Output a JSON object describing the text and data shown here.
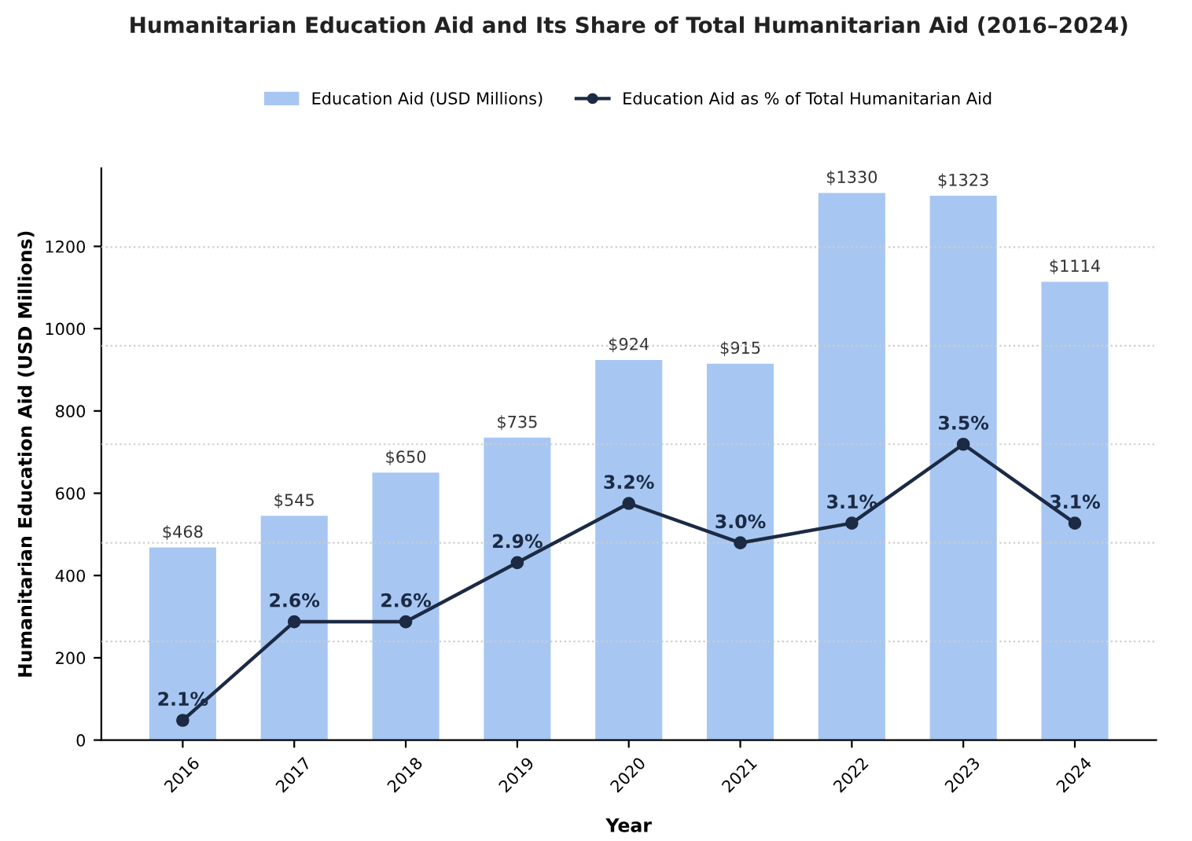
{
  "chart_data": {
    "type": "bar",
    "title": "Humanitarian Education Aid and Its Share of Total Humanitarian Aid (2016–2024)",
    "xlabel": "Year",
    "ylabel": "Humanitarian Education Aid (USD Millions)",
    "categories": [
      "2016",
      "2017",
      "2018",
      "2019",
      "2020",
      "2021",
      "2022",
      "2023",
      "2024"
    ],
    "series": [
      {
        "name": "Education Aid (USD Millions)",
        "color": "#a7c7f2",
        "values": [
          468,
          545,
          650,
          735,
          924,
          915,
          1330,
          1323,
          1114
        ],
        "value_labels": [
          "$468",
          "$545",
          "$650",
          "$735",
          "$924",
          "$915",
          "$1330",
          "$1323",
          "$1114"
        ]
      },
      {
        "name": "Education Aid as % of Total Humanitarian Aid",
        "type": "line",
        "axis": "y2",
        "color": "#1c2a44",
        "marker": "circle",
        "line_style": "solid",
        "values": [
          2.1,
          2.6,
          2.6,
          2.9,
          3.2,
          3.0,
          3.1,
          3.5,
          3.1
        ],
        "value_labels": [
          "2.1%",
          "2.6%",
          "2.6%",
          "2.9%",
          "3.2%",
          "3.0%",
          "3.1%",
          "3.5%",
          "3.1%"
        ]
      }
    ],
    "ylim": [
      0,
      1390
    ],
    "yticks": [
      0,
      200,
      400,
      600,
      800,
      1000,
      1200
    ],
    "y2lim": [
      2.0,
      4.9
    ],
    "y2ticks": [
      {
        "value": 2.5,
        "label": null
      },
      {
        "value": 3.0,
        "label": null
      },
      {
        "value": 3.5,
        "label": null
      },
      {
        "value": 4.0,
        "label": null
      },
      {
        "value": 4.5,
        "label": null
      }
    ],
    "grid": "y2",
    "legend": "top"
  }
}
